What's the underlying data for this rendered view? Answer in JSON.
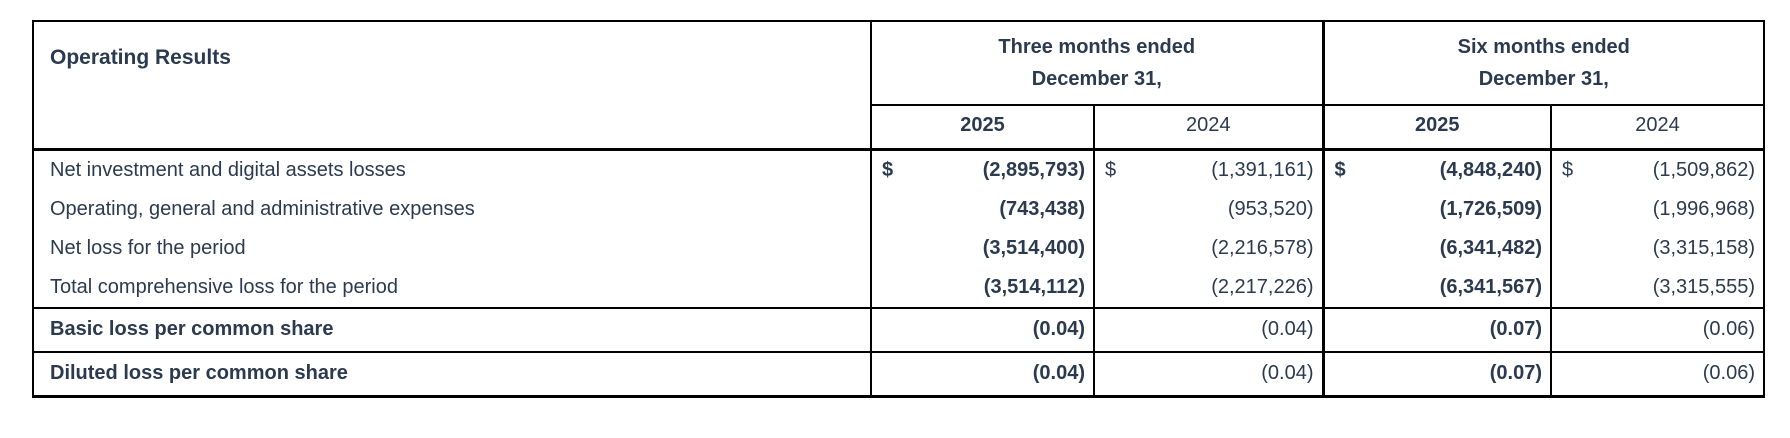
{
  "table": {
    "title": "Operating Results",
    "colors": {
      "text": "#2b3a4e",
      "border": "#000000",
      "background": "#ffffff"
    },
    "groups": [
      {
        "line1": "Three months ended",
        "line2": "December 31,"
      },
      {
        "line1": "Six months ended",
        "line2": "December 31,"
      }
    ],
    "year_columns": [
      "2025",
      "2024",
      "2025",
      "2024"
    ],
    "rows": [
      {
        "label": "Net investment and digital assets losses",
        "per_share": false,
        "currency": [
          "$",
          "$",
          "$",
          "$"
        ],
        "values": [
          "(2,895,793)",
          "(1,391,161)",
          "(4,848,240)",
          "(1,509,862)"
        ]
      },
      {
        "label": "Operating, general and administrative expenses",
        "per_share": false,
        "values": [
          "(743,438)",
          "(953,520)",
          "(1,726,509)",
          "(1,996,968)"
        ]
      },
      {
        "label": "Net loss for the period",
        "per_share": false,
        "values": [
          "(3,514,400)",
          "(2,216,578)",
          "(6,341,482)",
          "(3,315,158)"
        ]
      },
      {
        "label": "Total comprehensive loss for the period",
        "per_share": false,
        "values": [
          "(3,514,112)",
          "(2,217,226)",
          "(6,341,567)",
          "(3,315,555)"
        ]
      },
      {
        "label": "Basic loss per common share",
        "per_share": true,
        "values": [
          "(0.04)",
          "(0.04)",
          "(0.07)",
          "(0.06)"
        ]
      },
      {
        "label": "Diluted loss per common share",
        "per_share": true,
        "values": [
          "(0.04)",
          "(0.04)",
          "(0.07)",
          "(0.06)"
        ]
      }
    ]
  }
}
